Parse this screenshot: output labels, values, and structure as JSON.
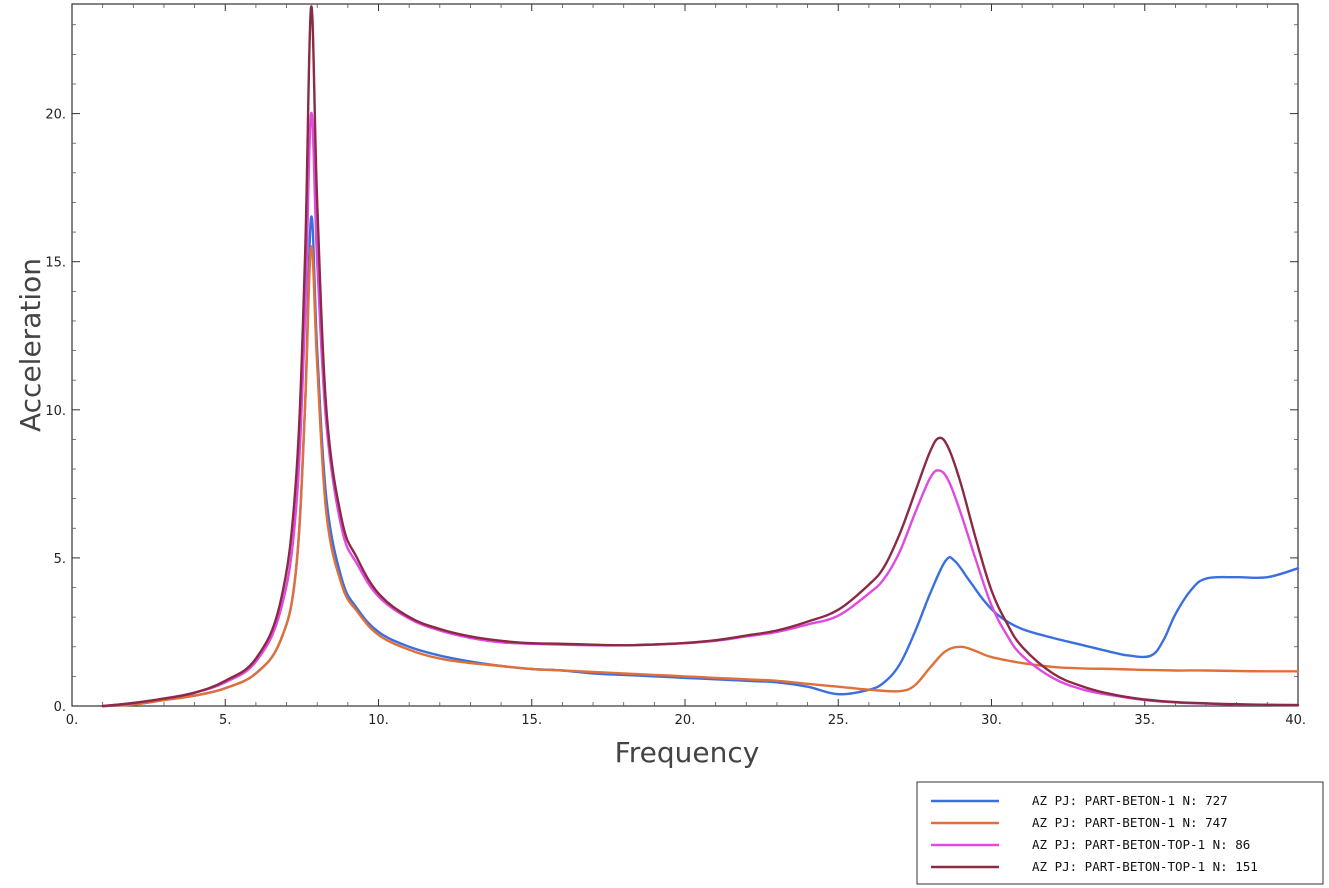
{
  "chart_data": {
    "type": "line",
    "xlabel": "Frequency",
    "ylabel": "Acceleration",
    "xlim": [
      0,
      40
    ],
    "ylim": [
      0,
      23.7
    ],
    "x_ticks": [
      0,
      5,
      10,
      15,
      20,
      25,
      30,
      35,
      40
    ],
    "x_tick_labels": [
      "0.",
      "5.",
      "10.",
      "15.",
      "20.",
      "25.",
      "30.",
      "35.",
      "40."
    ],
    "y_ticks": [
      0,
      5,
      10,
      15,
      20
    ],
    "y_tick_labels": [
      "0.",
      "5.",
      "10.",
      "15.",
      "20."
    ],
    "grid": false,
    "legend_position": "bottom-right, outside plot",
    "series": [
      {
        "name": "AZ PJ: PART-BETON-1 N: 727",
        "color": "#3b6fe0",
        "points": [
          [
            1,
            0
          ],
          [
            2,
            0.05
          ],
          [
            3,
            0.2
          ],
          [
            4,
            0.35
          ],
          [
            5,
            0.6
          ],
          [
            6,
            1.1
          ],
          [
            6.8,
            2.2
          ],
          [
            7.3,
            4.5
          ],
          [
            7.6,
            10
          ],
          [
            7.8,
            16.5
          ],
          [
            8,
            12
          ],
          [
            8.3,
            7
          ],
          [
            8.8,
            4.3
          ],
          [
            9.3,
            3.3
          ],
          [
            10,
            2.5
          ],
          [
            11,
            2
          ],
          [
            12,
            1.7
          ],
          [
            13,
            1.5
          ],
          [
            14,
            1.35
          ],
          [
            15,
            1.25
          ],
          [
            16,
            1.2
          ],
          [
            17,
            1.1
          ],
          [
            18,
            1.05
          ],
          [
            19,
            1.0
          ],
          [
            20,
            0.95
          ],
          [
            21,
            0.9
          ],
          [
            22,
            0.85
          ],
          [
            23,
            0.8
          ],
          [
            24,
            0.65
          ],
          [
            25,
            0.4
          ],
          [
            26,
            0.55
          ],
          [
            26.5,
            0.8
          ],
          [
            27,
            1.4
          ],
          [
            27.5,
            2.5
          ],
          [
            28,
            3.8
          ],
          [
            28.5,
            4.9
          ],
          [
            28.8,
            4.9
          ],
          [
            29.3,
            4.2
          ],
          [
            29.8,
            3.5
          ],
          [
            30.3,
            3.0
          ],
          [
            31,
            2.6
          ],
          [
            32,
            2.3
          ],
          [
            33,
            2.05
          ],
          [
            34,
            1.8
          ],
          [
            34.5,
            1.7
          ],
          [
            35.2,
            1.7
          ],
          [
            35.6,
            2.2
          ],
          [
            36,
            3.1
          ],
          [
            36.5,
            3.9
          ],
          [
            37,
            4.3
          ],
          [
            38,
            4.35
          ],
          [
            39,
            4.35
          ],
          [
            40,
            4.65
          ]
        ]
      },
      {
        "name": "AZ PJ: PART-BETON-1 N: 747",
        "color": "#e0703a",
        "points": [
          [
            1,
            0
          ],
          [
            2,
            0.05
          ],
          [
            3,
            0.2
          ],
          [
            4,
            0.35
          ],
          [
            5,
            0.6
          ],
          [
            6,
            1.1
          ],
          [
            6.8,
            2.2
          ],
          [
            7.3,
            4.5
          ],
          [
            7.6,
            10
          ],
          [
            7.8,
            15.5
          ],
          [
            8,
            11.5
          ],
          [
            8.3,
            6.5
          ],
          [
            8.8,
            4.1
          ],
          [
            9.3,
            3.2
          ],
          [
            10,
            2.4
          ],
          [
            11,
            1.9
          ],
          [
            12,
            1.6
          ],
          [
            13,
            1.45
          ],
          [
            14,
            1.35
          ],
          [
            15,
            1.25
          ],
          [
            16,
            1.2
          ],
          [
            17,
            1.15
          ],
          [
            18,
            1.1
          ],
          [
            19,
            1.05
          ],
          [
            20,
            1.0
          ],
          [
            21,
            0.95
          ],
          [
            22,
            0.9
          ],
          [
            23,
            0.85
          ],
          [
            24,
            0.75
          ],
          [
            25,
            0.65
          ],
          [
            26,
            0.55
          ],
          [
            27,
            0.5
          ],
          [
            27.5,
            0.7
          ],
          [
            28,
            1.3
          ],
          [
            28.5,
            1.85
          ],
          [
            29,
            2.0
          ],
          [
            29.5,
            1.85
          ],
          [
            30,
            1.65
          ],
          [
            31,
            1.45
          ],
          [
            32,
            1.32
          ],
          [
            33,
            1.27
          ],
          [
            34,
            1.25
          ],
          [
            35,
            1.22
          ],
          [
            36,
            1.2
          ],
          [
            37,
            1.2
          ],
          [
            38,
            1.18
          ],
          [
            39,
            1.17
          ],
          [
            40,
            1.17
          ]
        ]
      },
      {
        "name": "AZ PJ: PART-BETON-TOP-1 N: 86",
        "color": "#e04ae0",
        "points": [
          [
            1,
            0
          ],
          [
            2,
            0.1
          ],
          [
            3,
            0.25
          ],
          [
            4,
            0.45
          ],
          [
            5,
            0.8
          ],
          [
            6,
            1.5
          ],
          [
            6.8,
            3.2
          ],
          [
            7.3,
            6.5
          ],
          [
            7.6,
            13
          ],
          [
            7.8,
            20
          ],
          [
            8,
            15
          ],
          [
            8.3,
            9.5
          ],
          [
            8.8,
            6.0
          ],
          [
            9.3,
            4.8
          ],
          [
            10,
            3.7
          ],
          [
            11,
            2.95
          ],
          [
            12,
            2.55
          ],
          [
            13,
            2.3
          ],
          [
            14,
            2.15
          ],
          [
            15,
            2.1
          ],
          [
            16,
            2.07
          ],
          [
            17,
            2.05
          ],
          [
            18,
            2.05
          ],
          [
            19,
            2.07
          ],
          [
            20,
            2.12
          ],
          [
            21,
            2.2
          ],
          [
            22,
            2.35
          ],
          [
            23,
            2.5
          ],
          [
            24,
            2.75
          ],
          [
            25,
            3.05
          ],
          [
            26,
            3.8
          ],
          [
            26.5,
            4.3
          ],
          [
            27,
            5.2
          ],
          [
            27.5,
            6.5
          ],
          [
            28,
            7.7
          ],
          [
            28.3,
            7.95
          ],
          [
            28.6,
            7.6
          ],
          [
            29,
            6.5
          ],
          [
            29.5,
            4.9
          ],
          [
            30,
            3.4
          ],
          [
            30.5,
            2.4
          ],
          [
            31,
            1.7
          ],
          [
            32,
            0.95
          ],
          [
            33,
            0.55
          ],
          [
            34,
            0.35
          ],
          [
            35,
            0.2
          ],
          [
            36,
            0.12
          ],
          [
            37,
            0.08
          ],
          [
            38,
            0.05
          ],
          [
            39,
            0.04
          ],
          [
            40,
            0.03
          ]
        ]
      },
      {
        "name": "AZ PJ: PART-BETON-TOP-1 N: 151",
        "color": "#8b2a45",
        "points": [
          [
            1,
            0
          ],
          [
            2,
            0.1
          ],
          [
            3,
            0.25
          ],
          [
            4,
            0.45
          ],
          [
            5,
            0.85
          ],
          [
            6,
            1.6
          ],
          [
            6.8,
            3.5
          ],
          [
            7.3,
            7.5
          ],
          [
            7.6,
            15
          ],
          [
            7.8,
            23.6
          ],
          [
            8,
            17
          ],
          [
            8.3,
            10
          ],
          [
            8.8,
            6.3
          ],
          [
            9.3,
            5.0
          ],
          [
            10,
            3.8
          ],
          [
            11,
            3.0
          ],
          [
            12,
            2.6
          ],
          [
            13,
            2.35
          ],
          [
            14,
            2.2
          ],
          [
            15,
            2.12
          ],
          [
            16,
            2.1
          ],
          [
            17,
            2.07
          ],
          [
            18,
            2.05
          ],
          [
            19,
            2.08
          ],
          [
            20,
            2.13
          ],
          [
            21,
            2.22
          ],
          [
            22,
            2.38
          ],
          [
            23,
            2.55
          ],
          [
            24,
            2.85
          ],
          [
            25,
            3.25
          ],
          [
            26,
            4.1
          ],
          [
            26.5,
            4.7
          ],
          [
            27,
            5.8
          ],
          [
            27.5,
            7.2
          ],
          [
            28,
            8.6
          ],
          [
            28.3,
            9.05
          ],
          [
            28.6,
            8.7
          ],
          [
            29,
            7.5
          ],
          [
            29.5,
            5.6
          ],
          [
            30,
            3.9
          ],
          [
            30.5,
            2.8
          ],
          [
            31,
            2.0
          ],
          [
            32,
            1.1
          ],
          [
            33,
            0.65
          ],
          [
            34,
            0.38
          ],
          [
            35,
            0.22
          ],
          [
            36,
            0.13
          ],
          [
            37,
            0.09
          ],
          [
            38,
            0.06
          ],
          [
            39,
            0.04
          ],
          [
            40,
            0.03
          ]
        ]
      }
    ]
  }
}
